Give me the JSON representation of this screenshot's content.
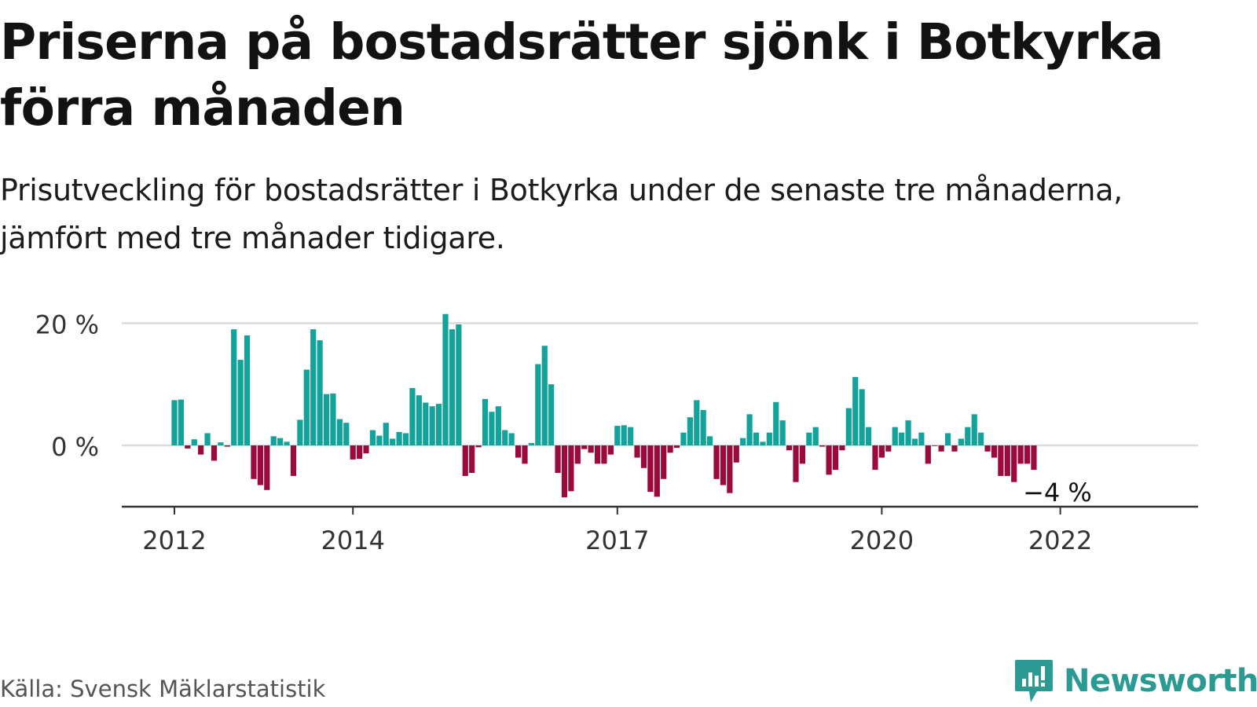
{
  "header": {
    "title": "Priserna på bostadsrätter sjönk i Botkyrka förra månaden",
    "subtitle": "Prisutveckling för bostadsrätter i Botkyrka under de senaste tre månaderna, jämfört med tre månader tidigare."
  },
  "footer": {
    "source": "Källa: Svensk Mäklarstatistik",
    "brand": "Newsworthy",
    "brand_icon": "newsworthy-logo-icon"
  },
  "colors": {
    "positive": "#14a39a",
    "negative": "#9a0a3c",
    "grid": "#dcdcdc",
    "axis": "#333333",
    "brand": "#2a9a92"
  },
  "chart_data": {
    "type": "bar",
    "x_start": "2012-01",
    "ylim": [
      -10,
      20
    ],
    "yticks": [
      {
        "value": 20,
        "label": "20 %"
      },
      {
        "value": 0,
        "label": "0 %"
      }
    ],
    "xticks": [
      {
        "index": 0,
        "label": "2012"
      },
      {
        "index": 27,
        "label": "2014"
      },
      {
        "index": 67,
        "label": "2017"
      },
      {
        "index": 107,
        "label": "2020"
      },
      {
        "index": 134,
        "label": "2022"
      }
    ],
    "values": [
      7.4,
      7.5,
      -0.5,
      1.0,
      -1.5,
      2.0,
      -2.5,
      0.5,
      -0.2,
      19.0,
      14.0,
      18.0,
      -5.5,
      -6.5,
      -7.3,
      1.5,
      1.2,
      0.6,
      -5.0,
      4.2,
      12.4,
      19.0,
      17.2,
      8.4,
      8.5,
      4.3,
      3.7,
      -2.3,
      -2.2,
      -1.3,
      2.5,
      1.6,
      3.7,
      1.1,
      2.2,
      2.0,
      9.4,
      8.2,
      7.0,
      6.4,
      6.8,
      21.5,
      19.0,
      19.8,
      -5.0,
      -4.5,
      -0.3,
      7.6,
      5.5,
      6.4,
      2.5,
      2.0,
      -2.0,
      -3.0,
      0.4,
      13.3,
      16.3,
      10.0,
      -4.5,
      -8.5,
      -7.5,
      -3.0,
      -0.6,
      -1.2,
      -3.0,
      -3.0,
      -1.5,
      3.2,
      3.3,
      3.0,
      -2.0,
      -3.7,
      -7.6,
      -8.4,
      -5.5,
      -1.2,
      -0.4,
      2.1,
      4.6,
      7.4,
      5.8,
      1.5,
      -5.5,
      -6.5,
      -7.8,
      -2.8,
      1.2,
      5.1,
      2.1,
      0.6,
      2.1,
      7.1,
      4.1,
      -0.8,
      -6.0,
      -3.0,
      2.1,
      3.0,
      -0.2,
      -4.8,
      -4.0,
      -0.8,
      6.1,
      11.2,
      9.2,
      3.0,
      -4.0,
      -2.0,
      -1.0,
      3.0,
      2.1,
      4.1,
      1.1,
      2.1,
      -3.0,
      -0.1,
      -1.0,
      2.0,
      -1.0,
      1.1,
      3.0,
      5.1,
      2.1,
      -1.0,
      -2.0,
      -5.0,
      -5.0,
      -6.0,
      -3.0,
      -3.0,
      -4.0
    ],
    "annotation": {
      "index": 130,
      "label": "−4 %"
    }
  }
}
